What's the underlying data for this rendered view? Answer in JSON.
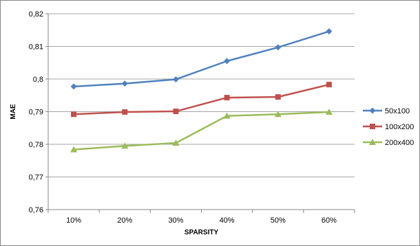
{
  "chart_data": {
    "type": "line",
    "title": "",
    "xlabel": "SPARSITY",
    "ylabel": "MAE",
    "categories": [
      "10%",
      "20%",
      "30%",
      "40%",
      "50%",
      "60%"
    ],
    "ylim": [
      0.76,
      0.82
    ],
    "yticks": [
      0.76,
      0.77,
      0.78,
      0.79,
      0.8,
      0.81,
      0.82
    ],
    "ytick_labels": [
      "0,76",
      "0,77",
      "0,78",
      "0,79",
      "0,8",
      "0,81",
      "0,82"
    ],
    "grid": "horizontal",
    "legend_position": "right",
    "series": [
      {
        "name": "50x100",
        "color": "#4F81BD",
        "marker": "diamond",
        "values": [
          0.7977,
          0.7986,
          0.7999,
          0.8055,
          0.8097,
          0.8146
        ]
      },
      {
        "name": "100x200",
        "color": "#C0504D",
        "marker": "square",
        "values": [
          0.7892,
          0.7899,
          0.7901,
          0.7943,
          0.7945,
          0.7983
        ]
      },
      {
        "name": "200x400",
        "color": "#9BBB59",
        "marker": "triangle",
        "values": [
          0.7784,
          0.7795,
          0.7804,
          0.7887,
          0.7892,
          0.7899
        ]
      }
    ]
  }
}
